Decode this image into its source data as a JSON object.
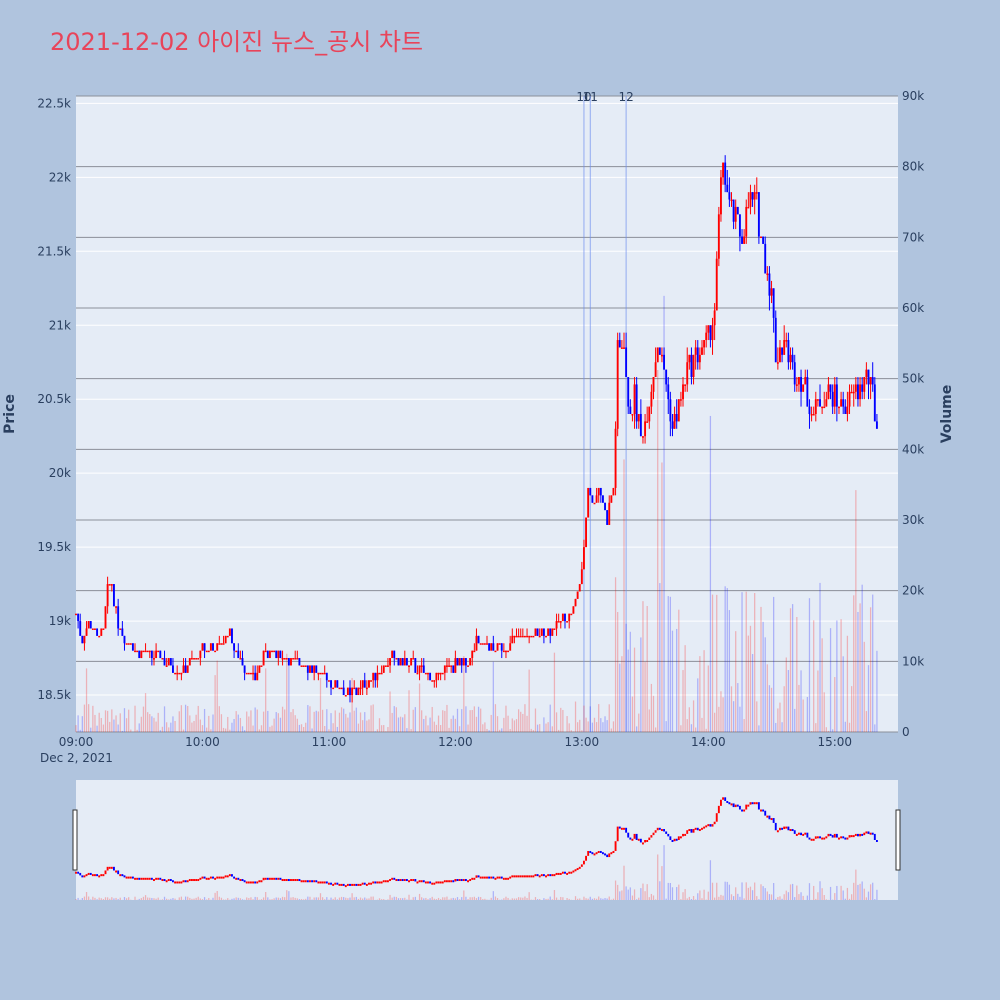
{
  "chart_data": {
    "type": "candlestick",
    "title": "2021-12-02 아이진 뉴스_공시 차트",
    "date_label": "Dec 2, 2021",
    "price_axis": {
      "label": "Price",
      "range": [
        18250,
        22550
      ],
      "ticks": [
        18500,
        19000,
        19500,
        20000,
        20500,
        21000,
        21500,
        22000,
        22500
      ],
      "tick_labels": [
        "18.5k",
        "19k",
        "19.5k",
        "20k",
        "20.5k",
        "21k",
        "21.5k",
        "22k",
        "22.5k"
      ]
    },
    "volume_axis": {
      "label": "Volume",
      "range": [
        0,
        90000
      ],
      "ticks": [
        0,
        10000,
        20000,
        30000,
        40000,
        50000,
        60000,
        70000,
        80000,
        90000
      ],
      "tick_labels": [
        "0",
        "10k",
        "20k",
        "30k",
        "40k",
        "50k",
        "60k",
        "70k",
        "80k",
        "90k"
      ]
    },
    "time_axis": {
      "start": "09:00",
      "end": "15:30",
      "ticks": [
        "09:00",
        "10:00",
        "11:00",
        "12:00",
        "13:00",
        "14:00",
        "15:00"
      ]
    },
    "news_markers": [
      {
        "label": "10",
        "time": "13:01"
      },
      {
        "label": "11",
        "time": "13:04"
      },
      {
        "label": "12",
        "time": "13:21"
      }
    ],
    "up_color": "#ff0000",
    "down_color": "#0000ff",
    "price_anchors": [
      [
        "09:00",
        19050
      ],
      [
        "09:03",
        18850
      ],
      [
        "09:06",
        19000
      ],
      [
        "09:10",
        18900
      ],
      [
        "09:13",
        18950
      ],
      [
        "09:15",
        19200
      ],
      [
        "09:17",
        19250
      ],
      [
        "09:19",
        19050
      ],
      [
        "09:22",
        18900
      ],
      [
        "09:30",
        18800
      ],
      [
        "09:40",
        18750
      ],
      [
        "09:50",
        18650
      ],
      [
        "10:00",
        18800
      ],
      [
        "10:10",
        18850
      ],
      [
        "10:12",
        18950
      ],
      [
        "10:15",
        18800
      ],
      [
        "10:20",
        18700
      ],
      [
        "10:25",
        18600
      ],
      [
        "10:30",
        18800
      ],
      [
        "10:40",
        18750
      ],
      [
        "10:50",
        18700
      ],
      [
        "11:00",
        18600
      ],
      [
        "11:05",
        18550
      ],
      [
        "11:10",
        18500
      ],
      [
        "11:20",
        18600
      ],
      [
        "11:30",
        18750
      ],
      [
        "11:40",
        18700
      ],
      [
        "11:45",
        18650
      ],
      [
        "11:50",
        18600
      ],
      [
        "11:55",
        18700
      ],
      [
        "12:05",
        18700
      ],
      [
        "12:10",
        18850
      ],
      [
        "12:20",
        18800
      ],
      [
        "12:30",
        18900
      ],
      [
        "12:40",
        18900
      ],
      [
        "12:50",
        19000
      ],
      [
        "12:55",
        19050
      ],
      [
        "13:00",
        19300
      ],
      [
        "13:03",
        19900
      ],
      [
        "13:05",
        19800
      ],
      [
        "13:08",
        19900
      ],
      [
        "13:12",
        19700
      ],
      [
        "13:15",
        19900
      ],
      [
        "13:17",
        20800
      ],
      [
        "13:20",
        20900
      ],
      [
        "13:22",
        20400
      ],
      [
        "13:25",
        20500
      ],
      [
        "13:28",
        20250
      ],
      [
        "13:32",
        20500
      ],
      [
        "13:36",
        20900
      ],
      [
        "13:40",
        20600
      ],
      [
        "13:43",
        20300
      ],
      [
        "13:46",
        20450
      ],
      [
        "13:50",
        20700
      ],
      [
        "13:55",
        20800
      ],
      [
        "14:00",
        20900
      ],
      [
        "14:03",
        21100
      ],
      [
        "14:05",
        21700
      ],
      [
        "14:07",
        22100
      ],
      [
        "14:10",
        21800
      ],
      [
        "14:13",
        21700
      ],
      [
        "14:16",
        21600
      ],
      [
        "14:20",
        21850
      ],
      [
        "14:23",
        21800
      ],
      [
        "14:26",
        21500
      ],
      [
        "14:30",
        21200
      ],
      [
        "14:32",
        20800
      ],
      [
        "14:36",
        20900
      ],
      [
        "14:40",
        20700
      ],
      [
        "14:45",
        20600
      ],
      [
        "14:50",
        20400
      ],
      [
        "14:55",
        20550
      ],
      [
        "15:00",
        20500
      ],
      [
        "15:05",
        20450
      ],
      [
        "15:10",
        20550
      ],
      [
        "15:15",
        20650
      ],
      [
        "15:18",
        20550
      ],
      [
        "15:20",
        20300
      ]
    ]
  }
}
